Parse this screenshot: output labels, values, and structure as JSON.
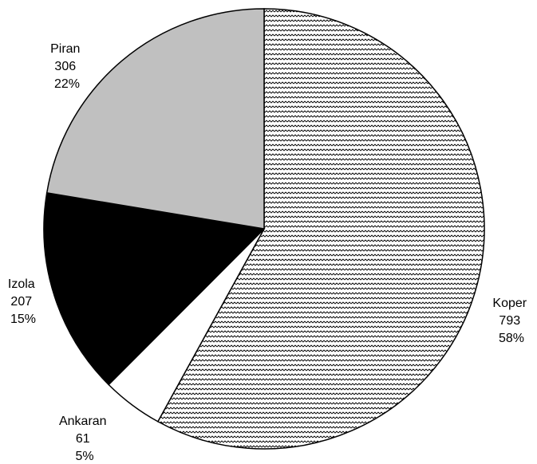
{
  "chart_data": {
    "type": "pie",
    "title": "",
    "start": "12 o'clock, clockwise",
    "slices": [
      {
        "label": "Koper",
        "value": 793,
        "percent": "58%",
        "fill": "pattern-zigzag",
        "color": "#ffffff"
      },
      {
        "label": "Ankaran",
        "value": 61,
        "percent": "5%",
        "fill": "solid",
        "color": "#ffffff"
      },
      {
        "label": "Izola",
        "value": 207,
        "percent": "15%",
        "fill": "solid",
        "color": "#000000"
      },
      {
        "label": "Piran",
        "value": 306,
        "percent": "22%",
        "fill": "solid",
        "color": "#c0c0c0"
      }
    ]
  }
}
